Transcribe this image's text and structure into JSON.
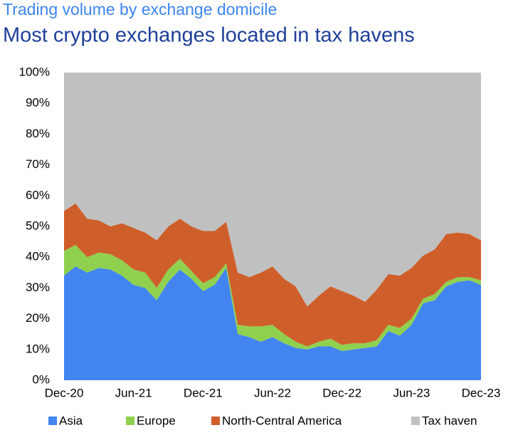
{
  "chart_data": {
    "type": "stacked-area",
    "subtitle": "Trading volume by exchange domicile",
    "title": "Most crypto exchanges located in tax havens",
    "categories": [
      "Dec-20",
      null,
      null,
      null,
      null,
      null,
      "Jun-21",
      null,
      null,
      null,
      null,
      null,
      "Dec-21",
      null,
      null,
      null,
      null,
      null,
      "Jun-22",
      null,
      null,
      null,
      null,
      null,
      "Dec-22",
      null,
      null,
      null,
      null,
      null,
      "Jun-23",
      null,
      null,
      null,
      null,
      null,
      "Dec-23"
    ],
    "series": [
      {
        "name": "Asia",
        "color": "#4285f0",
        "values": [
          34,
          37,
          35,
          36.5,
          36,
          34,
          31,
          30,
          26,
          32,
          36,
          33,
          29,
          31,
          36.5,
          15,
          14,
          12.5,
          14,
          12,
          10.5,
          10,
          11,
          11,
          9.5,
          10,
          10.5,
          11,
          16,
          14.5,
          18,
          25,
          26,
          30.5,
          32,
          32.5,
          31
        ]
      },
      {
        "name": "Europe",
        "color": "#8fd14f",
        "values": [
          8,
          7,
          5,
          5,
          5,
          5,
          5,
          5,
          4,
          4,
          3.5,
          2.5,
          2.5,
          2.5,
          1.5,
          3,
          3.5,
          5,
          4,
          3,
          2,
          1,
          1.5,
          2.5,
          2,
          2,
          1.5,
          2,
          2,
          2.5,
          2,
          1.5,
          2,
          1.5,
          1.5,
          1,
          1.5
        ]
      },
      {
        "name": "North-Central America",
        "color": "#cf5f2a",
        "values": [
          13,
          13.5,
          12.5,
          10.5,
          9,
          12,
          13.5,
          13,
          15.5,
          14,
          13,
          14.5,
          17,
          15,
          13.5,
          17,
          16,
          17.5,
          19,
          18,
          18,
          13,
          15,
          17,
          17.5,
          15.5,
          13.5,
          16.5,
          16.5,
          17,
          16.5,
          14,
          14.5,
          15.5,
          14.5,
          14,
          13
        ]
      },
      {
        "name": "Tax haven",
        "color": "#c0c0c0",
        "values": [
          45,
          42.5,
          47.5,
          48,
          50,
          49,
          50.5,
          52,
          54.5,
          50,
          47.5,
          50,
          51.5,
          51.5,
          48.5,
          65,
          66.5,
          65,
          63,
          67,
          69.5,
          76,
          72.5,
          69.5,
          71,
          72.5,
          74.5,
          70.5,
          65.5,
          66,
          63.5,
          59.5,
          57.5,
          52.5,
          52,
          52.5,
          54.5
        ]
      }
    ],
    "ylim": [
      0,
      100
    ],
    "yticks": [
      {
        "value": 0,
        "label": "0%"
      },
      {
        "value": 10,
        "label": "10%"
      },
      {
        "value": 20,
        "label": "20%"
      },
      {
        "value": 30,
        "label": "30%"
      },
      {
        "value": 40,
        "label": "40%"
      },
      {
        "value": 50,
        "label": "50%"
      },
      {
        "value": 60,
        "label": "60%"
      },
      {
        "value": 70,
        "label": "70%"
      },
      {
        "value": 80,
        "label": "80%"
      },
      {
        "value": 90,
        "label": "90%"
      },
      {
        "value": 100,
        "label": "100%"
      }
    ],
    "legend": "bottom"
  }
}
